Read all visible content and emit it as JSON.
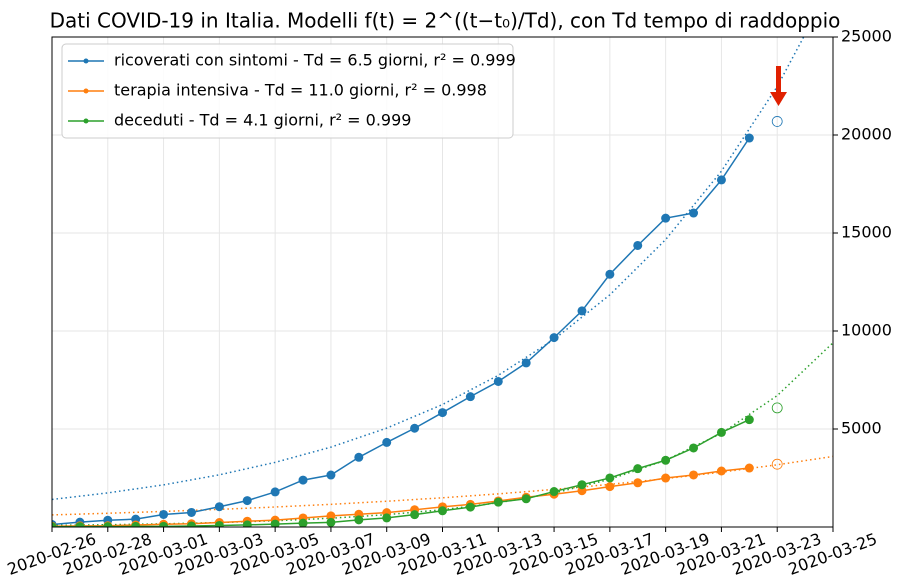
{
  "chart_data": {
    "type": "line",
    "title": "Dati COVID-19 in Italia. Modelli f(t) = 2^((t−t₀)/Td), con Td tempo di raddoppio",
    "x": [
      "2020-02-26",
      "2020-02-27",
      "2020-02-28",
      "2020-02-29",
      "2020-03-01",
      "2020-03-02",
      "2020-03-03",
      "2020-03-04",
      "2020-03-05",
      "2020-03-06",
      "2020-03-07",
      "2020-03-08",
      "2020-03-09",
      "2020-03-10",
      "2020-03-11",
      "2020-03-12",
      "2020-03-13",
      "2020-03-14",
      "2020-03-15",
      "2020-03-16",
      "2020-03-17",
      "2020-03-18",
      "2020-03-19",
      "2020-03-20",
      "2020-03-21",
      "2020-03-22",
      "2020-03-23"
    ],
    "hollow_last": true,
    "series": [
      {
        "name": "ricoverati con sintomi - Td = 6.5 giorni, r² = 0.999",
        "color": "#1f77b4",
        "values": [
          128,
          248,
          345,
          401,
          639,
          742,
          1034,
          1346,
          1790,
          2394,
          2651,
          3557,
          4316,
          5038,
          5838,
          6650,
          7426,
          8372,
          9663,
          11025,
          12894,
          14363,
          15757,
          16020,
          17708,
          19846,
          20692
        ]
      },
      {
        "name": "terapia intensiva - Td = 11.0 giorni, r² = 0.998",
        "color": "#ff7f0e",
        "values": [
          36,
          56,
          64,
          105,
          140,
          166,
          229,
          295,
          351,
          462,
          567,
          650,
          733,
          877,
          1028,
          1153,
          1328,
          1518,
          1672,
          1851,
          2060,
          2257,
          2498,
          2655,
          2857,
          3009,
          3204
        ]
      },
      {
        "name": "deceduti - Td = 4.1 giorni, r² = 0.999",
        "color": "#2ca02c",
        "values": [
          12,
          17,
          21,
          29,
          34,
          52,
          79,
          107,
          148,
          197,
          233,
          366,
          463,
          631,
          827,
          1016,
          1266,
          1441,
          1809,
          2158,
          2503,
          2978,
          3405,
          4032,
          4825,
          5476,
          6077
        ]
      }
    ],
    "fit_x": [
      "2020-02-26",
      "2020-02-28",
      "2020-03-01",
      "2020-03-03",
      "2020-03-05",
      "2020-03-07",
      "2020-03-09",
      "2020-03-11",
      "2020-03-13",
      "2020-03-15",
      "2020-03-17",
      "2020-03-19",
      "2020-03-21",
      "2020-03-23",
      "2020-03-25"
    ],
    "fits": [
      [
        1405,
        1740,
        2150,
        2662,
        3297,
        4076,
        5044,
        6250,
        7738,
        9573,
        11846,
        14665,
        18155,
        22470,
        27813
      ],
      [
        617,
        701,
        794,
        900,
        1020,
        1157,
        1314,
        1490,
        1690,
        1917,
        2174,
        2468,
        2798,
        3174,
        3600
      ],
      [
        83,
        116,
        162,
        228,
        320,
        448,
        629,
        882,
        1237,
        1733,
        2432,
        3408,
        4780,
        6702,
        9400
      ]
    ],
    "xlim": [
      "2020-02-26",
      "2020-03-25"
    ],
    "xticks": [
      "2020-02-26",
      "2020-02-28",
      "2020-03-01",
      "2020-03-03",
      "2020-03-05",
      "2020-03-07",
      "2020-03-09",
      "2020-03-11",
      "2020-03-13",
      "2020-03-15",
      "2020-03-17",
      "2020-03-19",
      "2020-03-21",
      "2020-03-23",
      "2020-03-25"
    ],
    "ylim": [
      0,
      25000
    ],
    "yticks": [
      5000,
      10000,
      15000,
      20000,
      25000
    ],
    "y_axis_side": "right",
    "grid": true,
    "legend": "upper left"
  }
}
